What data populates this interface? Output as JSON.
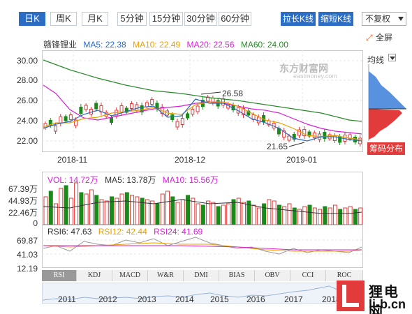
{
  "toolbar": {
    "period_tabs": [
      "日K",
      "周K",
      "月K",
      "5分钟",
      "15分钟",
      "30分钟",
      "60分钟"
    ],
    "active_tab": "日K",
    "stretch_button": "拉长K线",
    "shrink_button": "缩短K线",
    "adjust_select": "不复权",
    "fullscreen_label": "全屏"
  },
  "stock": {
    "name": "赣锋锂业",
    "ma5": "MA5: 22.38",
    "ma10": "MA10: 22.49",
    "ma20": "MA20: 22.56",
    "ma60": "MA60: 24.00",
    "high_label": "26.58",
    "low_label": "21.65"
  },
  "price_axis": [
    "30.00",
    "28.00",
    "26.00",
    "24.00",
    "22.00"
  ],
  "date_axis": [
    "2018-11",
    "2018-12",
    "2019-01"
  ],
  "side_panel": {
    "title": "均线",
    "chip_button": "筹码分布"
  },
  "volume": {
    "vol": "VOL: 14.72万",
    "ma5": "MA5: 13.78万",
    "ma10": "MA10: 15.56万",
    "axis": [
      "67.39万",
      "44.93万",
      "22.46万",
      "0"
    ]
  },
  "rsi": {
    "rsi6": "RSI6: 47.63",
    "rsi12": "RSI12: 42.44",
    "rsi24": "RSI24: 41.69",
    "axis": [
      "69.87",
      "41.03",
      "12.19"
    ]
  },
  "indicator_tabs": [
    "RSI",
    "KDJ",
    "MACD",
    "W&R",
    "DMI",
    "BIAS",
    "OBV",
    "CCI",
    "ROC"
  ],
  "active_indicator": "RSI",
  "timeline_years": [
    "2011",
    "2012",
    "2013",
    "2014",
    "2015",
    "2016",
    "2017",
    "2018"
  ],
  "watermark": {
    "site_cn": "狸电网",
    "site_url": "li-b.cn",
    "east": "东方财富网",
    "east_url": "eastmoney.com"
  },
  "colors": {
    "up": "#e23b3b",
    "down": "#1a8a1a",
    "ma5": "#2b6cc4",
    "ma10": "#e8a000",
    "ma20": "#d81fd8",
    "ma60": "#2a8a2a",
    "accent": "#2b6cc4"
  }
}
